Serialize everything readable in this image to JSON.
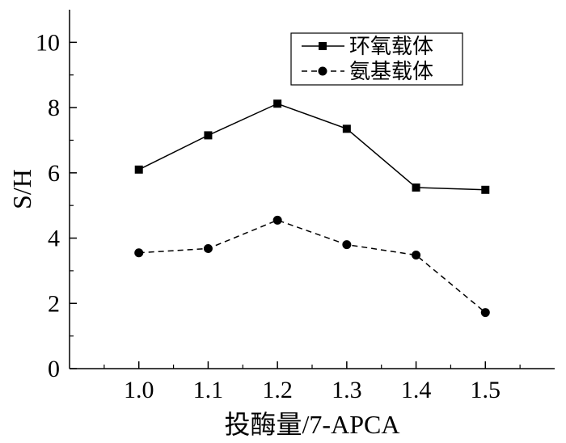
{
  "chart_data": {
    "type": "line",
    "title": "",
    "xlabel": "投酶量/7-APCA",
    "ylabel": "S/H",
    "x": [
      1.0,
      1.1,
      1.2,
      1.3,
      1.4,
      1.5
    ],
    "x_tick_labels": [
      "1.0",
      "1.1",
      "1.2",
      "1.3",
      "1.4",
      "1.5"
    ],
    "xlim": [
      0.9,
      1.6
    ],
    "ylim": [
      0,
      11
    ],
    "y_ticks": [
      0,
      2,
      4,
      6,
      8,
      10
    ],
    "y_tick_labels": [
      "0",
      "2",
      "4",
      "6",
      "8",
      "10"
    ],
    "grid": false,
    "legend_position": "top-right",
    "series": [
      {
        "name": "环氧载体",
        "marker": "square",
        "line_style": "solid",
        "color": "#000000",
        "values": [
          6.1,
          7.15,
          8.12,
          7.35,
          5.55,
          5.48
        ]
      },
      {
        "name": "氨基载体",
        "marker": "circle",
        "line_style": "dashed",
        "color": "#000000",
        "values": [
          3.55,
          3.68,
          4.55,
          3.8,
          3.48,
          1.72
        ]
      }
    ]
  }
}
